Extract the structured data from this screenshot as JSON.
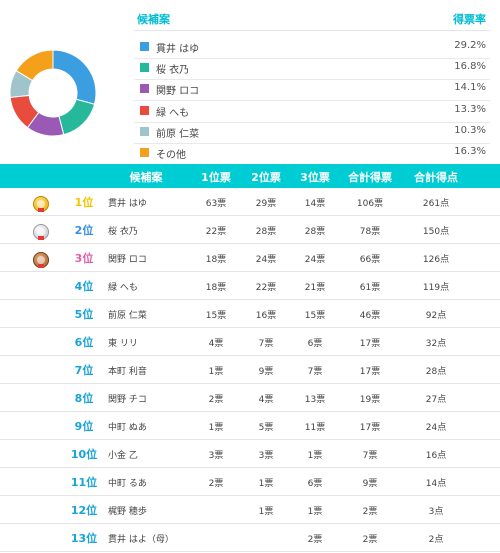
{
  "summary": {
    "header_name": "候補案",
    "header_rate": "得票率",
    "legend": [
      {
        "name": "貫井 はゆ",
        "rate": "29.2%",
        "color": "#3a9ee0",
        "value": 29.2
      },
      {
        "name": "桜 衣乃",
        "rate": "16.8%",
        "color": "#26b89a",
        "value": 16.8
      },
      {
        "name": "関野 ロコ",
        "rate": "14.1%",
        "color": "#9b59b6",
        "value": 14.1
      },
      {
        "name": "緑 へも",
        "rate": "13.3%",
        "color": "#e74c3c",
        "value": 13.3
      },
      {
        "name": "前原 仁菜",
        "rate": "10.3%",
        "color": "#9fc4cc",
        "value": 10.3
      },
      {
        "name": "その他",
        "rate": "16.3%",
        "color": "#f5a01a",
        "value": 16.3
      }
    ]
  },
  "table": {
    "headers": {
      "name": "候補案",
      "v1": "1位票",
      "v2": "2位票",
      "v3": "3位票",
      "total": "合計得票",
      "points": "合計得点"
    },
    "rank_colors": [
      "#f5c400",
      "#3a8fe0",
      "#e060a8",
      "#1aa3d6"
    ],
    "rows": [
      {
        "medal": "gold",
        "rank": "1位",
        "name": "貫井 はゆ",
        "v1": "63票",
        "v2": "29票",
        "v3": "14票",
        "total": "106票",
        "points": "261点"
      },
      {
        "medal": "silver",
        "rank": "2位",
        "name": "桜 衣乃",
        "v1": "22票",
        "v2": "28票",
        "v3": "28票",
        "total": "78票",
        "points": "150点"
      },
      {
        "medal": "bronze",
        "rank": "3位",
        "name": "関野 ロコ",
        "v1": "18票",
        "v2": "24票",
        "v3": "24票",
        "total": "66票",
        "points": "126点"
      },
      {
        "medal": "",
        "rank": "4位",
        "name": "緑 へも",
        "v1": "18票",
        "v2": "22票",
        "v3": "21票",
        "total": "61票",
        "points": "119点"
      },
      {
        "medal": "",
        "rank": "5位",
        "name": "前原 仁菜",
        "v1": "15票",
        "v2": "16票",
        "v3": "15票",
        "total": "46票",
        "points": "92点"
      },
      {
        "medal": "",
        "rank": "6位",
        "name": "東 リリ",
        "v1": "4票",
        "v2": "7票",
        "v3": "6票",
        "total": "17票",
        "points": "32点"
      },
      {
        "medal": "",
        "rank": "7位",
        "name": "本町 利音",
        "v1": "1票",
        "v2": "9票",
        "v3": "7票",
        "total": "17票",
        "points": "28点"
      },
      {
        "medal": "",
        "rank": "8位",
        "name": "関野 チコ",
        "v1": "2票",
        "v2": "4票",
        "v3": "13票",
        "total": "19票",
        "points": "27点"
      },
      {
        "medal": "",
        "rank": "9位",
        "name": "中町 ぬあ",
        "v1": "1票",
        "v2": "5票",
        "v3": "11票",
        "total": "17票",
        "points": "24点"
      },
      {
        "medal": "",
        "rank": "10位",
        "name": "小金 乙",
        "v1": "3票",
        "v2": "3票",
        "v3": "1票",
        "total": "7票",
        "points": "16点"
      },
      {
        "medal": "",
        "rank": "11位",
        "name": "中町 るあ",
        "v1": "2票",
        "v2": "1票",
        "v3": "6票",
        "total": "9票",
        "points": "14点"
      },
      {
        "medal": "",
        "rank": "12位",
        "name": "梶野 穂歩",
        "v1": "",
        "v2": "1票",
        "v3": "1票",
        "total": "2票",
        "points": "3点"
      },
      {
        "medal": "",
        "rank": "13位",
        "name": "貫井 はよ（母）",
        "v1": "",
        "v2": "",
        "v3": "2票",
        "total": "2票",
        "points": "2点"
      }
    ]
  }
}
